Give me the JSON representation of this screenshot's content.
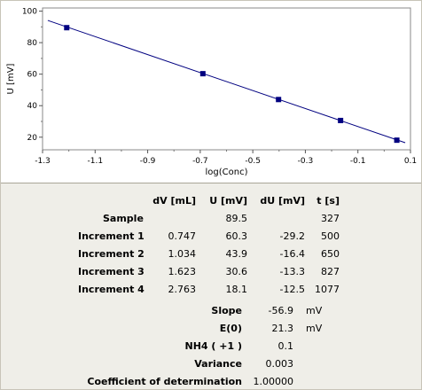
{
  "chart_data": {
    "type": "scatter",
    "xlabel": "log(Conc)",
    "ylabel": "U [mV]",
    "xlim": [
      -1.3,
      0.1
    ],
    "ylim": [
      12,
      102
    ],
    "xticks": [
      "-1.3",
      "-1.1",
      "-0.9",
      "-0.7",
      "-0.5",
      "-0.3",
      "-0.1",
      "0.1"
    ],
    "yticks": [
      "20",
      "40",
      "60",
      "80",
      "100"
    ],
    "series": [
      {
        "type": "scatter",
        "x": [
          -1.208,
          -0.69,
          -0.402,
          -0.166,
          0.048
        ],
        "y": [
          89.5,
          60.3,
          43.9,
          30.6,
          18.1
        ],
        "color": "#000080"
      },
      {
        "type": "line",
        "x": [
          -1.28,
          0.08
        ],
        "y": [
          94.1,
          16.5
        ],
        "color": "#000080"
      }
    ],
    "grid": false,
    "legend": "none"
  },
  "table": {
    "headers": [
      "dV [mL]",
      "U [mV]",
      "dU [mV]",
      "t [s]"
    ],
    "rows": [
      {
        "label": "Sample",
        "dv": "",
        "u": "89.5",
        "du": "",
        "t": "327"
      },
      {
        "label": "Increment 1",
        "dv": "0.747",
        "u": "60.3",
        "du": "-29.2",
        "t": "500"
      },
      {
        "label": "Increment 2",
        "dv": "1.034",
        "u": "43.9",
        "du": "-16.4",
        "t": "650"
      },
      {
        "label": "Increment 3",
        "dv": "1.623",
        "u": "30.6",
        "du": "-13.3",
        "t": "827"
      },
      {
        "label": "Increment 4",
        "dv": "2.763",
        "u": "18.1",
        "du": "-12.5",
        "t": "1077"
      }
    ]
  },
  "stats": [
    {
      "label": "Slope",
      "value": "-56.9",
      "unit": "mV"
    },
    {
      "label": "E(0)",
      "value": "21.3",
      "unit": "mV"
    },
    {
      "label": "NH4 ( +1 )",
      "value": "0.1",
      "unit": ""
    },
    {
      "label": "Variance",
      "value": "0.003",
      "unit": ""
    },
    {
      "label": "Coefficient of determination",
      "value": "1.00000",
      "unit": ""
    }
  ]
}
